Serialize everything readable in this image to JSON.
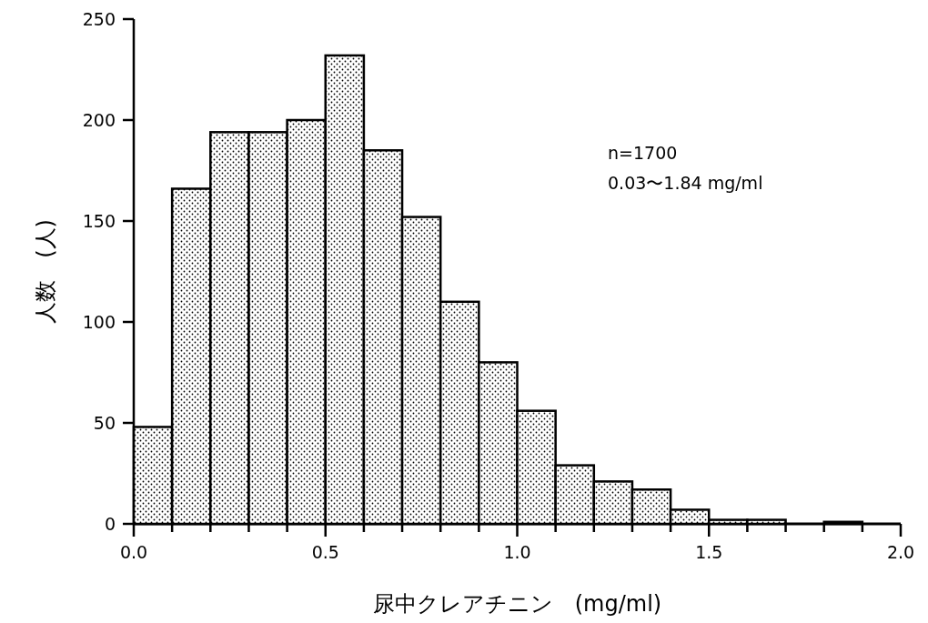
{
  "chart_data": {
    "type": "histogram",
    "xlabel": "尿中クレアチニン　(mg/ml)",
    "ylabel": "人数　(人)",
    "bins": [
      0.0,
      0.1,
      0.2,
      0.3,
      0.4,
      0.5,
      0.6,
      0.7,
      0.8,
      0.9,
      1.0,
      1.1,
      1.2,
      1.3,
      1.4,
      1.5,
      1.6,
      1.7,
      1.8,
      1.9
    ],
    "values": [
      48,
      166,
      194,
      194,
      200,
      232,
      185,
      152,
      110,
      80,
      56,
      29,
      21,
      17,
      7,
      2,
      2,
      0,
      1
    ],
    "color": "#000000",
    "xlim": [
      0,
      2
    ],
    "ylim": [
      0,
      250
    ],
    "xticks": [
      {
        "value": 0,
        "label": "0.0"
      },
      {
        "value": 0.1,
        "label": null
      },
      {
        "value": 0.2,
        "label": null
      },
      {
        "value": 0.3,
        "label": null
      },
      {
        "value": 0.4,
        "label": null
      },
      {
        "value": 0.5,
        "label": "0.5"
      },
      {
        "value": 0.6,
        "label": null
      },
      {
        "value": 0.7,
        "label": null
      },
      {
        "value": 0.8,
        "label": null
      },
      {
        "value": 0.9,
        "label": null
      },
      {
        "value": 1,
        "label": "1.0"
      },
      {
        "value": 1.1,
        "label": null
      },
      {
        "value": 1.2,
        "label": null
      },
      {
        "value": 1.3,
        "label": null
      },
      {
        "value": 1.4,
        "label": null
      },
      {
        "value": 1.5,
        "label": "1.5"
      },
      {
        "value": 1.6,
        "label": null
      },
      {
        "value": 1.7,
        "label": null
      },
      {
        "value": 1.8,
        "label": null
      },
      {
        "value": 1.9,
        "label": null
      },
      {
        "value": 2,
        "label": "2.0"
      }
    ],
    "yticks": [
      0,
      50,
      100,
      150,
      200,
      250
    ],
    "annotations": [
      "n=1700",
      "0.03〜1.84 mg/ml"
    ]
  }
}
